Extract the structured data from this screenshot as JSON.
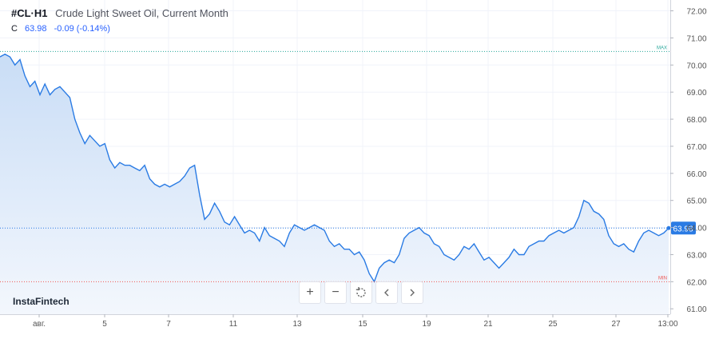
{
  "header": {
    "symbol": "#CL·H1",
    "description": "Crude Light Sweet Oil, Current Month"
  },
  "ohlc": {
    "label": "C",
    "close": "63.98",
    "change": "-0.09 (-0.14%)"
  },
  "brand": "InstaFintech",
  "toolbar": {
    "zoom_in": "+",
    "zoom_out": "−",
    "reset": "reset-icon",
    "back": "chevron-left-icon",
    "forward": "chevron-right-icon"
  },
  "colors": {
    "line": "#2a7be4",
    "area_top": "#c9ddf6",
    "area_bottom": "#f3f7fd",
    "price_tag": "#2a7be4",
    "max": "#26a69a",
    "min": "#ef5350",
    "grid": "#f0f3fa"
  },
  "chart_data": {
    "type": "area",
    "ylim": [
      60.8,
      72.4
    ],
    "y_ticks": [
      "72.00",
      "71.00",
      "70.00",
      "69.00",
      "68.00",
      "67.00",
      "66.00",
      "65.00",
      "64.00",
      "63.00",
      "62.00",
      "61.00"
    ],
    "x_ticks": [
      "авг.",
      "5",
      "7",
      "11",
      "13",
      "15",
      "19",
      "21",
      "25",
      "27",
      "13:00"
    ],
    "last_price": "63.98",
    "max_label": "MAX",
    "min_label": "MIN",
    "max_value": 70.5,
    "min_value": 62.0,
    "series": [
      {
        "values": [
          70.3,
          70.4,
          70.3,
          70.0,
          70.2,
          69.6,
          69.2,
          69.4,
          68.9,
          69.3,
          68.9,
          69.1,
          69.2,
          69.0,
          68.8,
          68.0,
          67.5,
          67.1,
          67.4,
          67.2,
          67.0,
          67.1,
          66.5,
          66.2,
          66.4,
          66.3,
          66.3,
          66.2,
          66.1,
          66.3,
          65.8,
          65.6,
          65.5,
          65.6,
          65.5,
          65.6,
          65.7,
          65.9,
          66.2,
          66.3,
          65.2,
          64.3,
          64.5,
          64.9,
          64.6,
          64.2,
          64.1,
          64.4,
          64.1,
          63.8,
          63.9,
          63.8,
          63.5,
          64.0,
          63.7,
          63.6,
          63.5,
          63.3,
          63.8,
          64.1,
          64.0,
          63.9,
          64.0,
          64.1,
          64.0,
          63.9,
          63.5,
          63.3,
          63.4,
          63.2,
          63.2,
          63.0,
          63.1,
          62.8,
          62.3,
          62.0,
          62.5,
          62.7,
          62.8,
          62.7,
          63.0,
          63.6,
          63.8,
          63.9,
          64.0,
          63.8,
          63.7,
          63.4,
          63.3,
          63.0,
          62.9,
          62.8,
          63.0,
          63.3,
          63.2,
          63.4,
          63.1,
          62.8,
          62.9,
          62.7,
          62.5,
          62.7,
          62.9,
          63.2,
          63.0,
          63.0,
          63.3,
          63.4,
          63.5,
          63.5,
          63.7,
          63.8,
          63.9,
          63.8,
          63.9,
          64.0,
          64.4,
          65.0,
          64.9,
          64.6,
          64.5,
          64.3,
          63.7,
          63.4,
          63.3,
          63.4,
          63.2,
          63.1,
          63.5,
          63.8,
          63.9,
          63.8,
          63.7,
          63.8,
          63.98
        ]
      }
    ]
  }
}
